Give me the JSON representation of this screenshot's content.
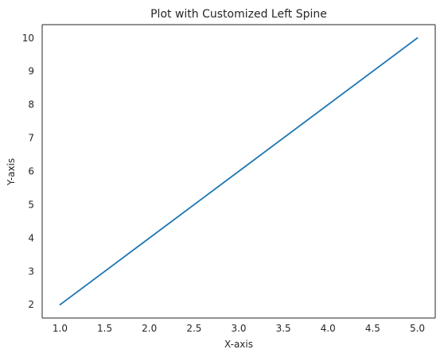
{
  "chart_data": {
    "type": "line",
    "title": "Plot with Customized Left Spine",
    "xlabel": "X-axis",
    "ylabel": "Y-axis",
    "xlim": [
      0.8,
      5.2
    ],
    "ylim": [
      1.6,
      10.4
    ],
    "x_ticks": [
      1.0,
      1.5,
      2.0,
      2.5,
      3.0,
      3.5,
      4.0,
      4.5,
      5.0
    ],
    "x_tick_labels": [
      "1.0",
      "1.5",
      "2.0",
      "2.5",
      "3.0",
      "3.5",
      "4.0",
      "4.5",
      "5.0"
    ],
    "y_ticks": [
      2,
      3,
      4,
      5,
      6,
      7,
      8,
      9,
      10
    ],
    "y_tick_labels": [
      "2",
      "3",
      "4",
      "5",
      "6",
      "7",
      "8",
      "9",
      "10"
    ],
    "grid": false,
    "series": [
      {
        "x": [
          1,
          2,
          3,
          4,
          5
        ],
        "y": [
          2,
          4,
          6,
          8,
          10
        ],
        "color": "#1f77b4"
      }
    ],
    "spine_color": "#262626"
  }
}
